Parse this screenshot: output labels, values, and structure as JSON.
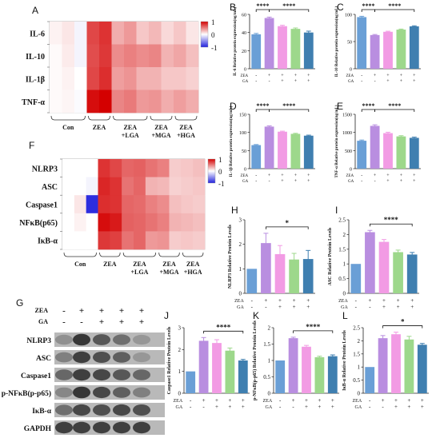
{
  "colors": {
    "ctrl": "#6a9fd6",
    "zea": "#b98ee0",
    "lga": "#f29be4",
    "mga": "#9dd88b",
    "hga": "#3f7fb0",
    "hm_high": "#d40000",
    "hm_mid": "#ffffff",
    "hm_low": "#2222dd"
  },
  "panel_letters": [
    "A",
    "B",
    "C",
    "D",
    "E",
    "F",
    "G",
    "H",
    "I",
    "J",
    "K",
    "L"
  ],
  "treatment_rows": {
    "zea_label": "ZEA",
    "ga_label": "GA",
    "zea": [
      "-",
      "+",
      "+",
      "+",
      "+"
    ],
    "ga": [
      "-",
      "-",
      "+",
      "+",
      "+"
    ]
  },
  "heatmap_A": {
    "rows": [
      "IL-6",
      "IL-10",
      "IL-1β",
      "TNF-α"
    ],
    "groups": [
      "Con",
      "ZEA",
      "ZEA\n+LGA",
      "ZEA\n+MGA",
      "ZEA\n+HGA"
    ],
    "legend_ticks": [
      "1",
      "0",
      "-1"
    ],
    "values": [
      [
        0.05,
        0.1,
        -0.05,
        0.72,
        0.8,
        0.32,
        0.4,
        0.22,
        0.28,
        0.15,
        0.22,
        0.1
      ],
      [
        0.02,
        0.08,
        -0.05,
        0.7,
        0.78,
        0.45,
        0.5,
        0.45,
        0.48,
        0.3,
        0.35,
        0.25
      ],
      [
        0.02,
        0.05,
        0.0,
        0.72,
        0.82,
        0.38,
        0.42,
        0.3,
        0.3,
        0.22,
        0.22,
        0.18
      ],
      [
        0.02,
        0.04,
        -0.02,
        0.95,
        1.0,
        0.48,
        0.52,
        0.4,
        0.42,
        0.32,
        0.38,
        0.32
      ]
    ]
  },
  "heatmap_F": {
    "rows": [
      "NLRP3",
      "ASC",
      "Caspase1",
      "NFκB(p65)",
      "IκB-α"
    ],
    "groups": [
      "Con",
      "ZEA",
      "ZEA\n+LGA",
      "ZEA\n+MGA",
      "ZEA\n+HGA"
    ],
    "legend_ticks": [
      "1",
      "0",
      "-1"
    ],
    "values": [
      [
        0.0,
        0.0,
        0.0,
        0.8,
        0.72,
        0.6,
        0.62,
        0.55,
        0.5,
        0.2,
        0.22,
        0.25
      ],
      [
        0.0,
        0.0,
        -0.05,
        0.85,
        0.8,
        0.55,
        0.6,
        0.3,
        0.28,
        0.18,
        0.2,
        0.22
      ],
      [
        0.0,
        0.1,
        -0.95,
        0.82,
        0.8,
        0.6,
        0.58,
        0.5,
        0.45,
        0.25,
        0.22,
        0.2
      ],
      [
        0.0,
        0.05,
        0.0,
        0.95,
        0.9,
        0.62,
        0.6,
        0.55,
        0.5,
        0.3,
        0.28,
        0.25
      ],
      [
        0.0,
        0.0,
        0.0,
        0.78,
        0.75,
        0.55,
        0.6,
        0.4,
        0.42,
        0.2,
        0.22,
        0.2
      ]
    ]
  },
  "western_G": {
    "zea_label": "ZEA",
    "ga_label": "GA",
    "bands": [
      "NLRP3",
      "ASC",
      "Caspase1",
      "p-NFκB(p-p65)",
      "IκB-α",
      "GAPDH"
    ],
    "intensity": [
      [
        0.35,
        0.9,
        0.7,
        0.55,
        0.3
      ],
      [
        0.45,
        0.85,
        0.75,
        0.65,
        0.3
      ],
      [
        0.6,
        0.85,
        0.8,
        0.7,
        0.6
      ],
      [
        0.4,
        0.9,
        0.8,
        0.65,
        0.45
      ],
      [
        0.55,
        0.8,
        0.75,
        0.8,
        0.75
      ],
      [
        0.85,
        0.85,
        0.85,
        0.85,
        0.85
      ]
    ]
  },
  "chart_data": [
    {
      "panel": "B",
      "type": "bar",
      "ylabel": "IL-6 Relative protein expression(ng/mL)",
      "ylim": [
        0,
        60
      ],
      "yticks": [
        0,
        20,
        40,
        60
      ],
      "values": [
        38,
        56,
        47,
        44,
        40
      ],
      "errors": [
        1.0,
        1.0,
        1.0,
        1.0,
        1.5
      ],
      "sig": [
        {
          "from": 0,
          "to": 1,
          "label": "****"
        },
        {
          "from": 1,
          "to": 4,
          "label": "****"
        }
      ]
    },
    {
      "panel": "C",
      "type": "bar",
      "ylabel": "IL-10 Relative protein expression(ng/mL)",
      "ylim": [
        0,
        100
      ],
      "yticks": [
        0,
        50,
        100
      ],
      "values": [
        95,
        62,
        68,
        72,
        78
      ],
      "errors": [
        1.5,
        1.0,
        1.0,
        1.0,
        1.0
      ],
      "sig": [
        {
          "from": 0,
          "to": 1,
          "label": "****"
        },
        {
          "from": 1,
          "to": 4,
          "label": "****"
        }
      ]
    },
    {
      "panel": "D",
      "type": "bar",
      "ylabel": "IL-1β Relative protein expression(ng/mL)",
      "ylim": [
        0,
        150
      ],
      "yticks": [
        0,
        50,
        100,
        150
      ],
      "values": [
        65,
        116,
        102,
        96,
        91
      ],
      "errors": [
        1.5,
        2.0,
        1.5,
        1.5,
        1.5
      ],
      "sig": [
        {
          "from": 0,
          "to": 1,
          "label": "****"
        },
        {
          "from": 1,
          "to": 4,
          "label": "****"
        }
      ]
    },
    {
      "panel": "E",
      "type": "bar",
      "ylabel": "TNF-α Relative protein expression(ng/mL)",
      "ylim": [
        0,
        1500
      ],
      "yticks": [
        0,
        500,
        1000,
        1500
      ],
      "values": [
        770,
        1180,
        980,
        890,
        850
      ],
      "errors": [
        20,
        30,
        25,
        20,
        20
      ],
      "sig": [
        {
          "from": 0,
          "to": 1,
          "label": "****"
        },
        {
          "from": 1,
          "to": 4,
          "label": "****"
        }
      ]
    },
    {
      "panel": "H",
      "type": "bar",
      "ylabel": "NLRP3 Relative Protein Levels",
      "ylim": [
        0,
        3
      ],
      "yticks": [
        0,
        1,
        2,
        3
      ],
      "values": [
        1.0,
        2.05,
        1.6,
        1.38,
        1.4
      ],
      "errors": [
        0.0,
        0.4,
        0.35,
        0.25,
        0.35
      ],
      "sig": [
        {
          "from": 1,
          "to": 4,
          "label": "*"
        }
      ]
    },
    {
      "panel": "I",
      "type": "bar",
      "ylabel": "ASC Relative Protein Levels",
      "ylim": [
        0.0,
        2.5
      ],
      "yticks": [
        0.0,
        0.5,
        1.0,
        1.5,
        2.0,
        2.5
      ],
      "values": [
        1.0,
        2.08,
        1.75,
        1.4,
        1.32
      ],
      "errors": [
        0.0,
        0.06,
        0.08,
        0.07,
        0.07
      ],
      "sig": [
        {
          "from": 1,
          "to": 4,
          "label": "****"
        }
      ]
    },
    {
      "panel": "J",
      "type": "bar",
      "ylabel": "Caspase1 Relative Protein Levels",
      "ylim": [
        0,
        3
      ],
      "yticks": [
        0,
        1,
        2,
        3
      ],
      "values": [
        1.0,
        2.4,
        2.3,
        1.95,
        1.5
      ],
      "errors": [
        0.0,
        0.15,
        0.15,
        0.12,
        0.05
      ],
      "sig": [
        {
          "from": 1,
          "to": 4,
          "label": "****"
        }
      ]
    },
    {
      "panel": "K",
      "type": "bar",
      "ylabel": "p-NFκB(p-p65) Relative Protein Levels",
      "ylim": [
        0.0,
        2.0
      ],
      "yticks": [
        0.0,
        0.5,
        1.0,
        1.5,
        2.0
      ],
      "values": [
        1.0,
        1.68,
        1.42,
        1.1,
        1.13
      ],
      "errors": [
        0.0,
        0.03,
        0.04,
        0.03,
        0.04
      ],
      "sig": [
        {
          "from": 1,
          "to": 4,
          "label": "****"
        }
      ]
    },
    {
      "panel": "L",
      "type": "bar",
      "ylabel": "IκB-α Relative Protein Levels",
      "ylim": [
        0.0,
        2.5
      ],
      "yticks": [
        0.0,
        0.5,
        1.0,
        1.5,
        2.0,
        2.5
      ],
      "values": [
        1.0,
        2.1,
        2.25,
        2.05,
        1.85
      ],
      "errors": [
        0.0,
        0.1,
        0.08,
        0.12,
        0.05
      ],
      "sig": [
        {
          "from": 1,
          "to": 4,
          "label": "*"
        }
      ]
    }
  ]
}
